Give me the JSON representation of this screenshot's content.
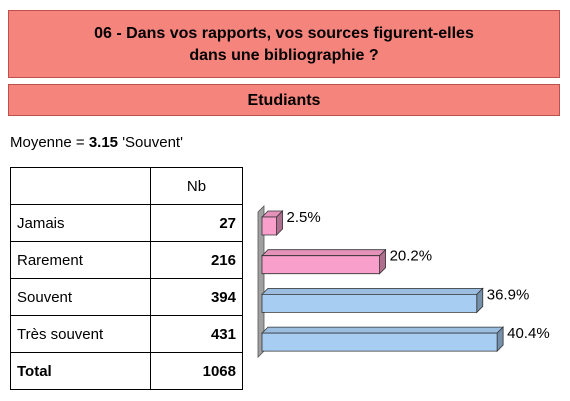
{
  "header": {
    "title_lines": [
      "06 - Dans vos rapports, vos sources figurent-elles",
      "dans une bibliographie ?"
    ],
    "group": "Etudiants"
  },
  "summary": {
    "label": "Moyenne =",
    "value": "3.15",
    "text": "'Souvent'"
  },
  "table": {
    "column": "Nb",
    "rows": [
      [
        "Jamais",
        27
      ],
      [
        "Rarement",
        216
      ],
      [
        "Souvent",
        394
      ],
      [
        "Très souvent",
        431
      ]
    ],
    "total": [
      "Total",
      1068
    ]
  },
  "chart_data": {
    "type": "bar",
    "orientation": "horizontal",
    "values": [
      2.5,
      20.2,
      36.9,
      40.4
    ],
    "value_labels": [
      "2.5%",
      "20.2%",
      "36.9%",
      "40.4%"
    ],
    "colors": [
      "#f99fcb",
      "#f99fcb",
      "#a7cdf3",
      "#a7cdf3"
    ]
  }
}
